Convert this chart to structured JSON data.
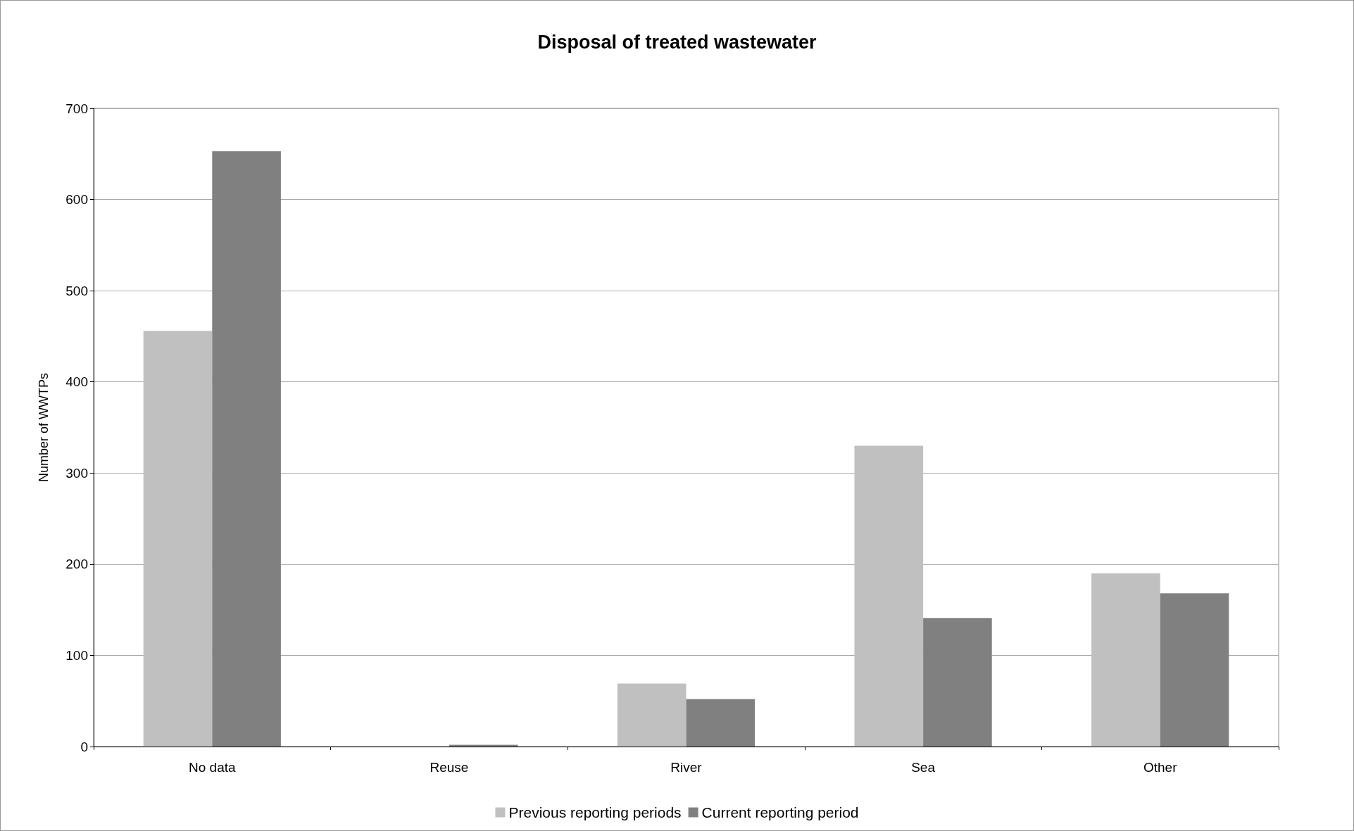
{
  "chart_data": {
    "type": "bar",
    "title": "Disposal of treated wastewater",
    "ylabel": "Number of WWTPs",
    "categories": [
      "No data",
      "Reuse",
      "River",
      "Sea",
      "Other"
    ],
    "series": [
      {
        "name": "Previous reporting periods",
        "color": "#c0c0c0",
        "values": [
          456,
          0,
          69,
          330,
          190
        ]
      },
      {
        "name": "Current reporting period",
        "color": "#808080",
        "values": [
          653,
          2,
          52,
          141,
          168
        ]
      }
    ],
    "ylim": [
      0,
      700
    ],
    "yticks": [
      0,
      100,
      200,
      300,
      400,
      500,
      600,
      700
    ],
    "grid": "y",
    "legend": "bottom"
  }
}
